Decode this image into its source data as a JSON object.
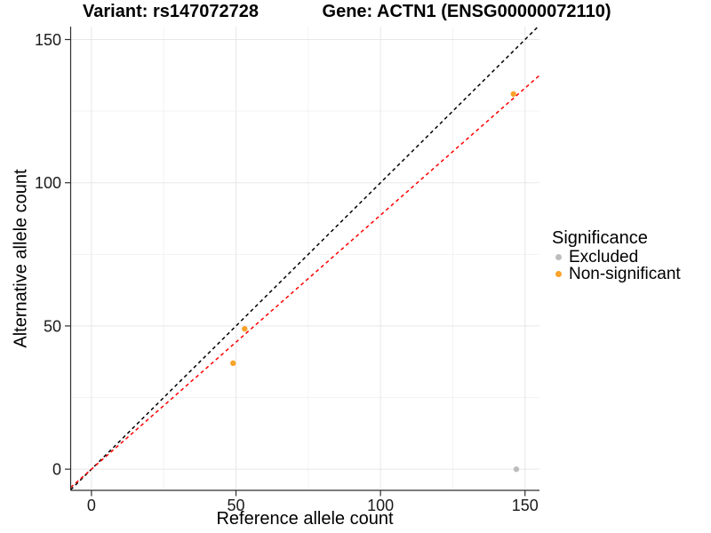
{
  "titles": {
    "variant": "Variant: rs147072728",
    "gene": "Gene: ACTN1 (ENSG00000072110)"
  },
  "legend": {
    "title": "Significance",
    "items": [
      {
        "label": "Excluded",
        "color": "#bdbdbd"
      },
      {
        "label": "Non-significant",
        "color": "#f8a32a"
      }
    ]
  },
  "chart_data": {
    "type": "scatter",
    "title": "Variant: rs147072728   Gene: ACTN1 (ENSG00000072110)",
    "xlabel": "Reference allele count",
    "ylabel": "Alternative allele count",
    "xlim": [
      -7.2,
      155.0
    ],
    "ylim": [
      -7.4,
      154.5
    ],
    "x_ticks": [
      0,
      50,
      100,
      150
    ],
    "y_ticks": [
      0,
      50,
      100,
      150
    ],
    "x_minor_ticks": [
      25,
      75,
      125
    ],
    "y_minor_ticks": [
      25,
      75,
      125
    ],
    "grid": true,
    "legend_position": "right",
    "legend_title": "Significance",
    "series": [
      {
        "name": "Excluded",
        "color": "#bdbdbd",
        "points": [
          [
            147,
            0
          ]
        ]
      },
      {
        "name": "Non-significant",
        "color": "#f8a32a",
        "points": [
          [
            49,
            37
          ],
          [
            53,
            49
          ],
          [
            146,
            131
          ]
        ]
      }
    ],
    "lines": [
      {
        "name": "identity-line",
        "style": "dashed",
        "color": "#000000",
        "slope": 1.0,
        "intercept": 0
      },
      {
        "name": "regression-line",
        "style": "dashed",
        "color": "#ff0000",
        "slope": 0.887,
        "intercept": 0
      }
    ],
    "colors": {
      "grid_major": "#e7e7e7",
      "grid_minor": "#f3f3f3",
      "axis": "#2f2f2f",
      "tick_text": "#1a1a1a"
    }
  }
}
